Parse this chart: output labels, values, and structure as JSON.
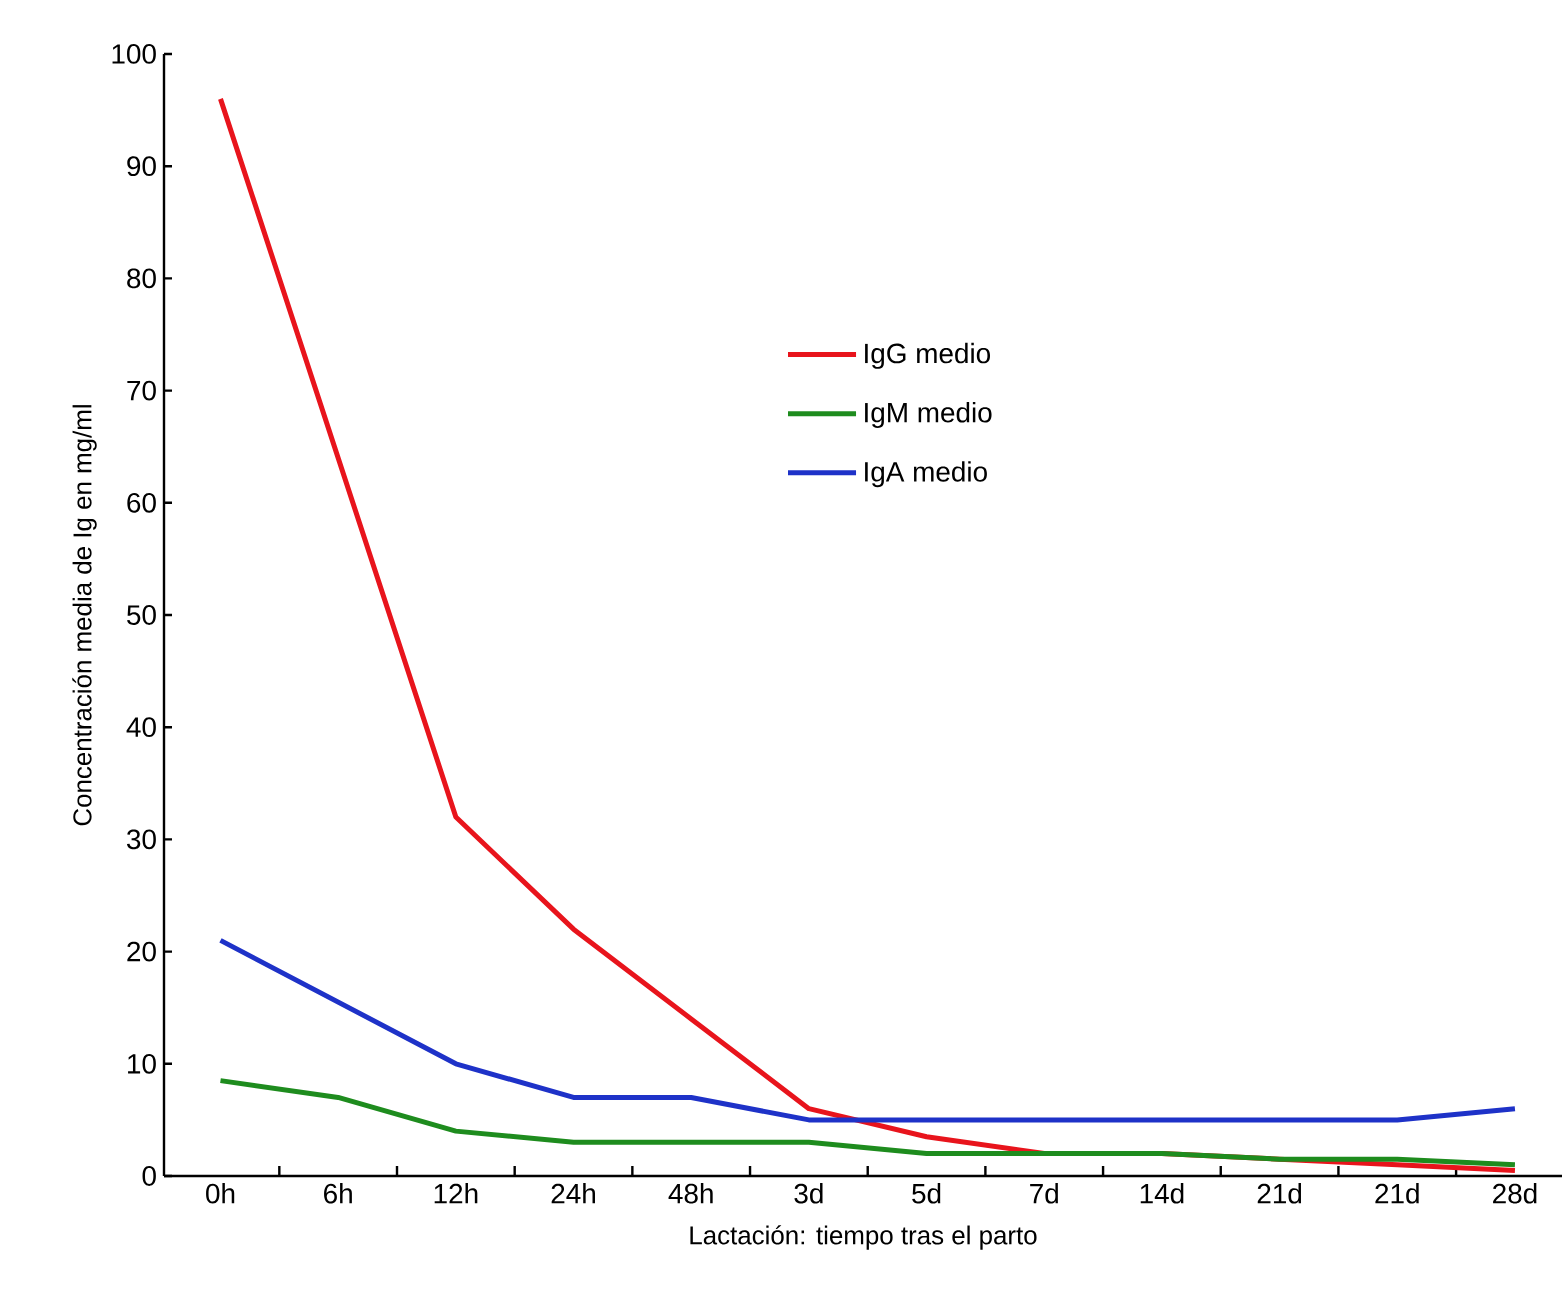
{
  "chart_data": {
    "type": "line",
    "xlabel": "Lactación: tiempo tras el parto",
    "ylabel": "Concentración media de Ig en mg/ml",
    "categories": [
      "0h",
      "6h",
      "12h",
      "24h",
      "48h",
      "3d",
      "5d",
      "7d",
      "14d",
      "21d",
      "21d",
      "28d"
    ],
    "series": [
      {
        "name": "IgG medio",
        "color": "#e8141c",
        "values": [
          96,
          64,
          32,
          22,
          14,
          6,
          3.5,
          2,
          2,
          1.5,
          1,
          0.5
        ]
      },
      {
        "name": "IgM medio",
        "color": "#1e8c1e",
        "values": [
          8.5,
          7,
          4,
          3,
          3,
          3,
          2,
          2,
          2,
          1.5,
          1.5,
          1
        ]
      },
      {
        "name": "IgA medio",
        "color": "#1e32c8",
        "values": [
          21,
          15.5,
          10,
          7,
          7,
          5,
          5,
          5,
          5,
          5,
          5,
          6
        ]
      }
    ],
    "ylim": [
      0,
      100
    ],
    "yticks": [
      0,
      10,
      20,
      30,
      40,
      50,
      60,
      70,
      80,
      90,
      100
    ],
    "grid": false,
    "legend": "top",
    "marker": "none",
    "line_style": "solid"
  }
}
